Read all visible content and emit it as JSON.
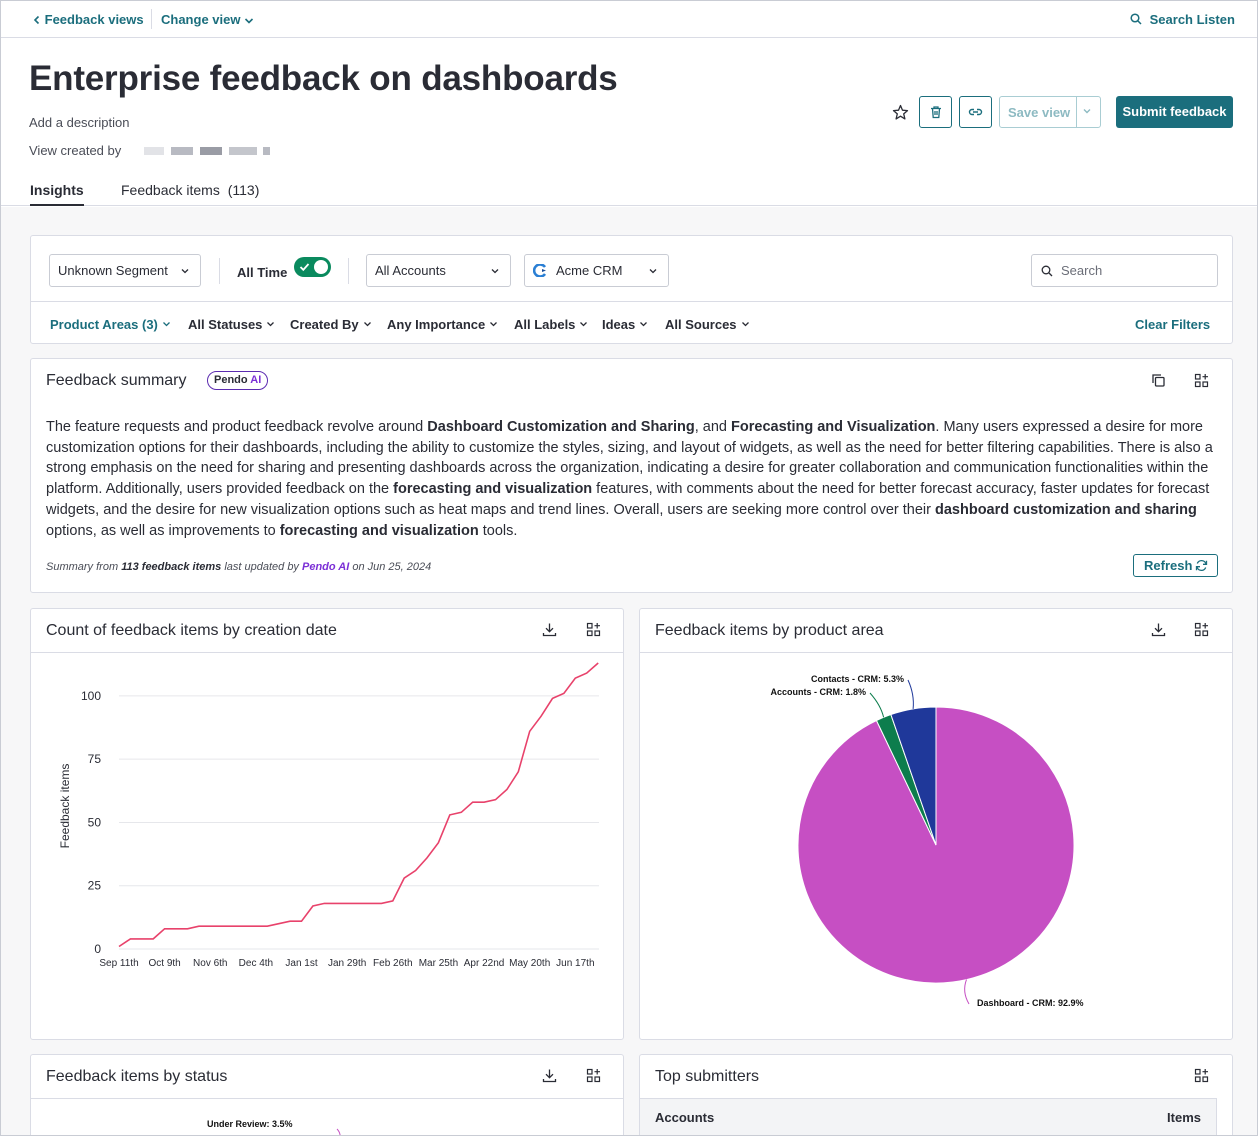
{
  "topbar": {
    "back_label": "Feedback views",
    "change_view_label": "Change view",
    "search_listen_label": "Search Listen"
  },
  "header": {
    "title": "Enterprise feedback on dashboards",
    "description_placeholder": "Add a description",
    "created_by_label": "View created by",
    "save_view_label": "Save view",
    "submit_label": "Submit feedback"
  },
  "tabs": [
    {
      "label": "Insights",
      "active": true
    },
    {
      "label": "Feedback items",
      "count": "(113)"
    }
  ],
  "filters": {
    "segment": "Unknown Segment",
    "all_time_label": "All Time",
    "all_time_on": true,
    "accounts": "All Accounts",
    "app": "Acme CRM",
    "search_placeholder": "Search",
    "row2": [
      "Product Areas (3)",
      "All Statuses",
      "Created By",
      "Any Importance",
      "All Labels",
      "Ideas",
      "All Sources"
    ],
    "clear_label": "Clear Filters"
  },
  "summary": {
    "title": "Feedback summary",
    "badge_brand": "Pendo",
    "badge_ai": "AI",
    "parts": [
      {
        "t": "The feature requests and product feedback revolve around ",
        "b": false
      },
      {
        "t": "Dashboard Customization and Sharing",
        "b": true
      },
      {
        "t": ", and ",
        "b": false
      },
      {
        "t": "Forecasting and Visualization",
        "b": true
      },
      {
        "t": ". Many users expressed a desire for more customization options for their dashboards, including the ability to customize the styles, sizing, and layout of widgets, as well as the need for better filtering capabilities. There is also a strong emphasis on the need for sharing and presenting dashboards across the organization, indicating a desire for greater collaboration and communication functionalities within the platform. Additionally, users provided feedback on the ",
        "b": false
      },
      {
        "t": "forecasting and visualization",
        "b": true
      },
      {
        "t": " features, with comments about the need for better forecast accuracy, faster updates for forecast widgets, and the desire for new visualization options such as heat maps and trend lines. Overall, users are seeking more control over their ",
        "b": false
      },
      {
        "t": "dashboard customization and sharing",
        "b": true
      },
      {
        "t": " options, as well as improvements to ",
        "b": false
      },
      {
        "t": "forecasting and visualization",
        "b": true
      },
      {
        "t": " tools.",
        "b": false
      }
    ],
    "foot_prefix": "Summary from ",
    "foot_count": "113 feedback items",
    "foot_mid": " last updated by ",
    "foot_by": "Pendo AI",
    "foot_suffix": " on Jun 25, 2024",
    "refresh_label": "Refresh"
  },
  "cards": {
    "line_title": "Count of feedback items by creation date",
    "pie_title": "Feedback items by product area",
    "status_title": "Feedback items by status",
    "submitters_title": "Top submitters",
    "submitters_col_accounts": "Accounts",
    "submitters_col_items": "Items",
    "status_partial_label": "Under Review: 3.5%"
  },
  "chart_data": [
    {
      "type": "line",
      "title": "Count of feedback items by creation date",
      "ylabel": "Feedback items",
      "ylim": [
        0,
        113
      ],
      "yticks": [
        0,
        25,
        50,
        75,
        100
      ],
      "xticks": [
        "Sep 11th",
        "Oct 9th",
        "Nov 6th",
        "Dec 4th",
        "Jan 1st",
        "Jan 29th",
        "Feb 26th",
        "Mar 25th",
        "Apr 22nd",
        "May 20th",
        "Jun 17th"
      ],
      "x_range_weeks": [
        0,
        41.3
      ],
      "series": [
        {
          "color": "#e8426b",
          "points": [
            [
              0,
              1
            ],
            [
              1,
              4
            ],
            [
              3,
              4
            ],
            [
              4,
              8
            ],
            [
              6,
              8
            ],
            [
              7,
              9
            ],
            [
              13,
              9
            ],
            [
              14,
              10
            ],
            [
              15,
              11
            ],
            [
              16,
              11
            ],
            [
              17,
              17
            ],
            [
              18,
              18
            ],
            [
              23,
              18
            ],
            [
              24,
              19
            ],
            [
              25,
              28
            ],
            [
              26,
              31
            ],
            [
              27,
              36
            ],
            [
              28,
              42
            ],
            [
              29,
              53
            ],
            [
              30,
              54
            ],
            [
              31,
              58
            ],
            [
              32,
              58
            ],
            [
              33,
              59
            ],
            [
              34,
              63
            ],
            [
              35,
              70
            ],
            [
              36,
              86
            ],
            [
              37,
              92
            ],
            [
              38,
              99
            ],
            [
              39,
              101
            ],
            [
              40,
              107
            ],
            [
              41,
              109
            ],
            [
              42,
              113
            ]
          ]
        }
      ]
    },
    {
      "type": "pie",
      "title": "Feedback items by product area",
      "slices": [
        {
          "label": "Dashboard - CRM",
          "value": 92.9,
          "pct_label": "Dashboard - CRM: 92.9%",
          "color": "#c64fc3"
        },
        {
          "label": "Accounts - CRM",
          "value": 1.8,
          "pct_label": "Accounts - CRM: 1.8%",
          "color": "#0d7d4d"
        },
        {
          "label": "Contacts - CRM",
          "value": 5.3,
          "pct_label": "Contacts - CRM: 5.3%",
          "color": "#1f389a"
        }
      ]
    }
  ]
}
